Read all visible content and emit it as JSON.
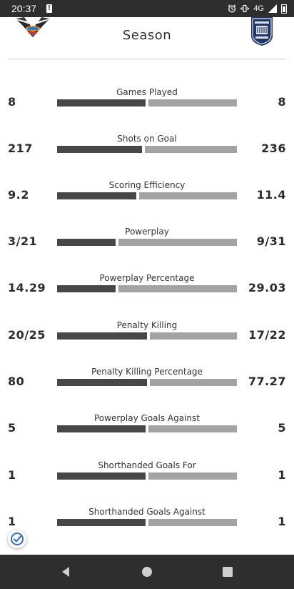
{
  "status_bar": {
    "time": "20:37",
    "alert_glyph": "!",
    "network": "4G"
  },
  "header": {
    "title": "Season",
    "home_logo": "team-logo-left",
    "away_logo": "team-logo-right"
  },
  "colors": {
    "home_bar": "#474747",
    "away_bar": "#a3a3a3",
    "chrome": "#2e2e2e"
  },
  "stats": [
    {
      "label": "Games Played",
      "left": "8",
      "right": "8",
      "left_share": 0.5
    },
    {
      "label": "Shots on Goal",
      "left": "217",
      "right": "236",
      "left_share": 0.479
    },
    {
      "label": "Scoring Efficiency",
      "left": "9.2",
      "right": "11.4",
      "left_share": 0.447
    },
    {
      "label": "Powerplay",
      "left": "3/21",
      "right": "9/31",
      "left_share": 0.33
    },
    {
      "label": "Powerplay Percentage",
      "left": "14.29",
      "right": "29.03",
      "left_share": 0.33
    },
    {
      "label": "Penalty Killing",
      "left": "20/25",
      "right": "17/22",
      "left_share": 0.509
    },
    {
      "label": "Penalty Killing Percentage",
      "left": "80",
      "right": "77.27",
      "left_share": 0.509
    },
    {
      "label": "Powerplay Goals Against",
      "left": "5",
      "right": "5",
      "left_share": 0.5
    },
    {
      "label": "Shorthanded Goals For",
      "left": "1",
      "right": "1",
      "left_share": 0.5
    },
    {
      "label": "Shorthanded Goals Against",
      "left": "1",
      "right": "1",
      "left_share": 0.5
    }
  ],
  "nav": {
    "back": "back-icon",
    "home": "home-icon",
    "recents": "recents-icon"
  }
}
